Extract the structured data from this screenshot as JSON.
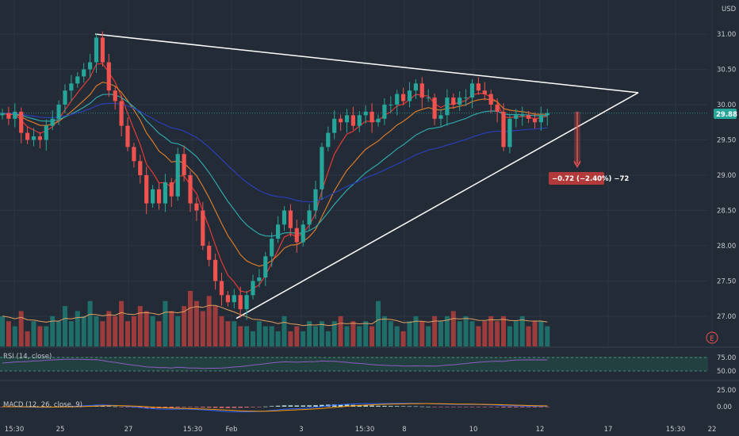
{
  "colors": {
    "background": "#232b37",
    "up": "#26a69a",
    "down": "#ef5350",
    "vol_up": "#1f7a73",
    "vol_down": "#b3403d",
    "ema_fast": "#e53935",
    "ema_mid": "#d87a2c",
    "ema_slow": "#2fa6a8",
    "ema_long": "#2a3fb6",
    "trendline": "#ffffff",
    "price_badge": "#26a69a",
    "measure_badge": "#b33a3a"
  },
  "chart_data": {
    "type": "candlestick",
    "price_axis": {
      "currency": "USD",
      "ticks": [
        "31.00",
        "30.50",
        "30.00",
        "29.50",
        "29.00",
        "28.50",
        "28.00",
        "27.50",
        "27.00"
      ],
      "range": [
        26.7,
        31.3
      ],
      "last_price": "29.88"
    },
    "time_axis": {
      "labels": [
        "15:30",
        "25",
        "27",
        "15:30",
        "Feb",
        "3",
        "15:30",
        "8",
        "10",
        "12",
        "17",
        "15:30",
        "22"
      ]
    },
    "series": [
      {
        "name": "price",
        "open": [
          29.85,
          29.88,
          29.8,
          29.9,
          29.6,
          29.5,
          29.55,
          29.5,
          29.7,
          29.8,
          30.0,
          30.2,
          30.3,
          30.4,
          30.5,
          30.6,
          30.95,
          30.6,
          30.2,
          30.05,
          29.7,
          29.4,
          29.2,
          29.0,
          28.6,
          28.8,
          28.6,
          28.9,
          28.7,
          29.3,
          29.0,
          28.6,
          28.5,
          28.0,
          27.8,
          27.5,
          27.3,
          27.2,
          27.3,
          27.1,
          27.3,
          27.5,
          27.55,
          27.85,
          28.1,
          28.3,
          28.5,
          28.25,
          28.05,
          28.3,
          28.5,
          28.8,
          29.4,
          29.6,
          29.8,
          29.75,
          29.85,
          29.7,
          29.85,
          29.9,
          29.75,
          29.8,
          30.0,
          30.0,
          30.15,
          30.05,
          30.2,
          30.3,
          30.1,
          30.1,
          29.8,
          29.85,
          30.1,
          30.0,
          30.1,
          30.1,
          30.3,
          30.2,
          30.15,
          30.0,
          29.9,
          29.4,
          29.8,
          29.85,
          29.85,
          29.8,
          29.75,
          29.85
        ],
        "close": [
          29.88,
          29.8,
          29.9,
          29.6,
          29.5,
          29.55,
          29.5,
          29.7,
          29.8,
          30.0,
          30.2,
          30.3,
          30.4,
          30.5,
          30.6,
          30.95,
          30.6,
          30.2,
          30.05,
          29.7,
          29.4,
          29.2,
          29.0,
          28.6,
          28.8,
          28.6,
          28.9,
          28.7,
          29.3,
          29.0,
          28.6,
          28.5,
          28.0,
          27.8,
          27.5,
          27.3,
          27.2,
          27.3,
          27.1,
          27.3,
          27.5,
          27.55,
          27.85,
          28.1,
          28.3,
          28.5,
          28.25,
          28.05,
          28.3,
          28.5,
          28.8,
          29.4,
          29.6,
          29.8,
          29.75,
          29.85,
          29.7,
          29.85,
          29.9,
          29.75,
          29.8,
          30.0,
          30.0,
          30.15,
          30.05,
          30.2,
          30.3,
          30.1,
          30.1,
          29.8,
          29.85,
          30.1,
          30.0,
          30.1,
          30.1,
          30.3,
          30.2,
          30.15,
          30.0,
          29.9,
          29.4,
          29.8,
          29.85,
          29.85,
          29.8,
          29.75,
          29.85,
          29.88
        ]
      },
      {
        "name": "volume",
        "values": [
          6,
          5,
          4,
          7,
          3,
          5,
          4,
          4,
          6,
          5,
          8,
          5,
          7,
          6,
          9,
          6,
          5,
          7,
          6,
          9,
          5,
          6,
          8,
          7,
          6,
          5,
          9,
          7,
          6,
          8,
          11,
          9,
          7,
          10,
          8,
          6,
          5,
          5,
          4,
          4,
          3,
          5,
          4,
          4,
          3,
          6,
          3,
          4,
          3,
          5,
          4,
          5,
          3,
          5,
          6,
          4,
          5,
          4,
          5,
          4,
          9,
          6,
          5,
          4,
          3,
          5,
          6,
          5,
          4,
          6,
          5,
          6,
          7,
          5,
          6,
          5,
          4,
          5,
          6,
          5,
          6,
          4,
          5,
          6,
          4,
          5,
          5,
          4
        ]
      },
      {
        "name": "RSI (14, close)",
        "levels": [
          "75.00",
          "50.00"
        ]
      },
      {
        "name": "MACD (12, 26, close, 9)",
        "levels": [
          "25.00",
          "0.00"
        ]
      }
    ],
    "annotations": {
      "measure_label": "−0.72 (−2.40%) −72"
    }
  },
  "panes": {
    "rsi_label": "RSI (14, close)",
    "rsi_levels": [
      "75.00",
      "50.00"
    ],
    "macd_label": "MACD (12, 26, close, 9)",
    "macd_levels": [
      "25.00",
      "0.00"
    ]
  },
  "icons": {
    "marker": "E"
  }
}
